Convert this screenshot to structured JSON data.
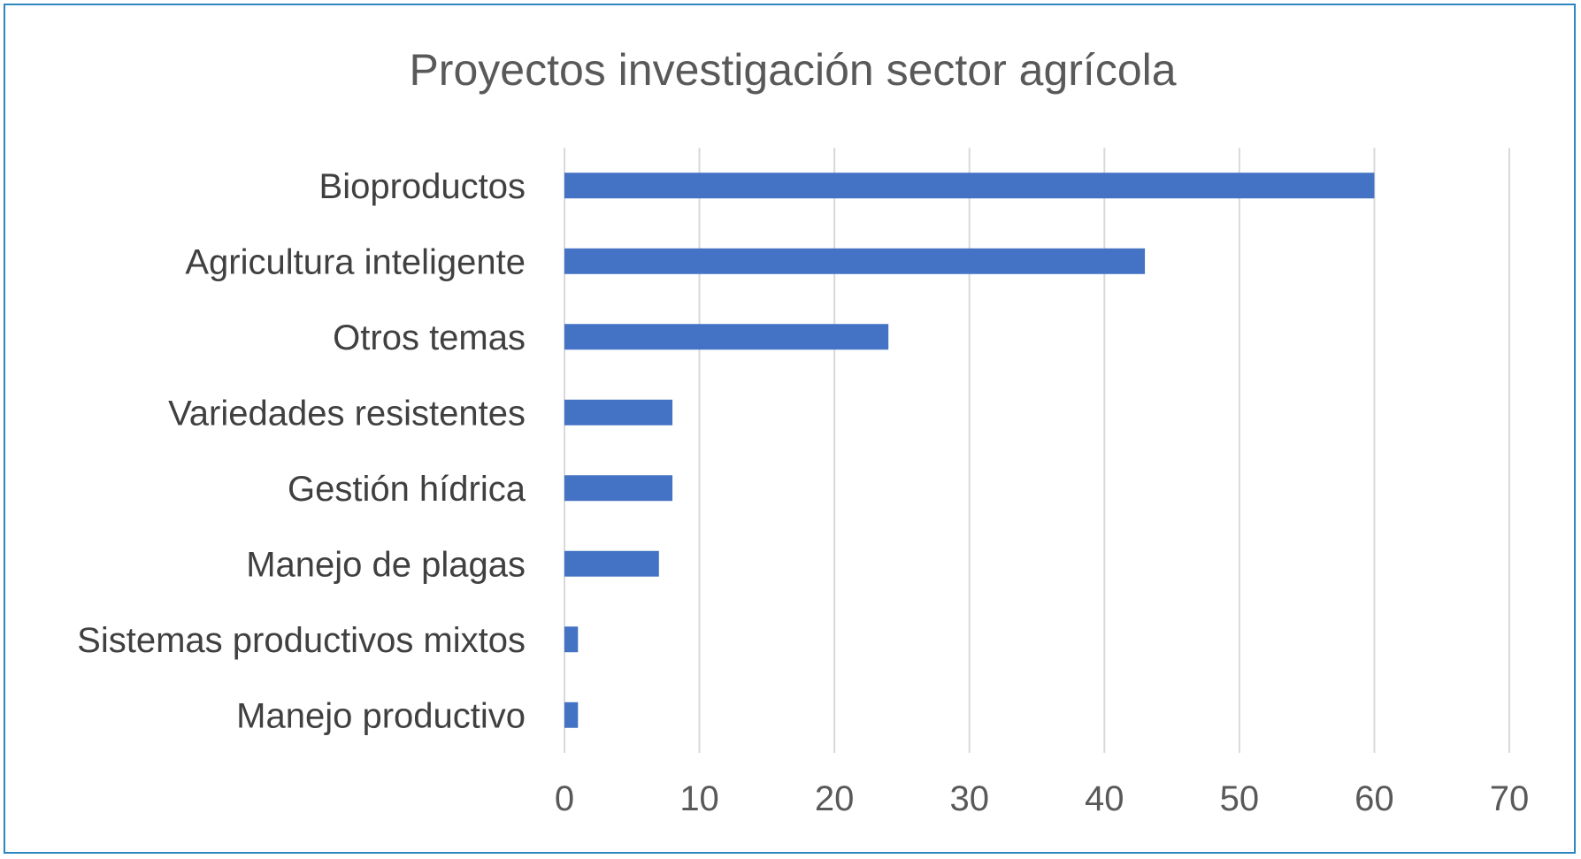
{
  "chart_data": {
    "type": "bar",
    "orientation": "horizontal",
    "title": "Proyectos investigación sector agrícola",
    "xlabel": "",
    "ylabel": "",
    "categories": [
      "Bioproductos",
      "Agricultura inteligente",
      "Otros temas",
      "Variedades resistentes",
      "Gestión hídrica",
      "Manejo de plagas",
      "Sistemas productivos mixtos",
      "Manejo productivo"
    ],
    "values": [
      60,
      43,
      24,
      8,
      8,
      7,
      1,
      1
    ],
    "xlim": [
      0,
      70
    ],
    "xticks": [
      0,
      10,
      20,
      30,
      40,
      50,
      60,
      70
    ],
    "grid": true,
    "legend": "none",
    "colors": {
      "bar": "#4472c4",
      "grid": "#d9d9d9",
      "frame": "#2e86c1"
    }
  }
}
